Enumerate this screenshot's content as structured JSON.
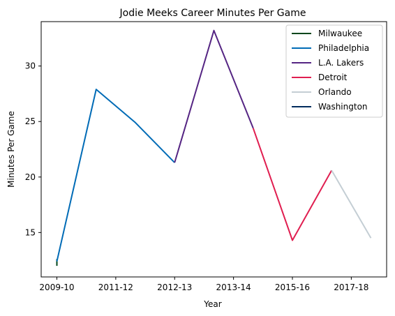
{
  "chart_data": {
    "type": "line",
    "title": "Jodie Meeks Career Minutes Per Game",
    "xlabel": "Year",
    "ylabel": "Minutes Per Game",
    "x_ticks": [
      "2009-10",
      "2011-12",
      "2012-13",
      "2013-14",
      "2015-16",
      "2017-18"
    ],
    "y_ticks": [
      15,
      20,
      25,
      30
    ],
    "ylim": [
      11,
      34
    ],
    "grid": false,
    "legend_position": "top-right",
    "series": [
      {
        "name": "Milwaukee",
        "color": "#00471b",
        "points": [
          [
            0,
            12.0
          ],
          [
            0,
            12.6
          ]
        ]
      },
      {
        "name": "Philadelphia",
        "color": "#006bb6",
        "points": [
          [
            0,
            12.4
          ],
          [
            1,
            27.9
          ],
          [
            2,
            24.9
          ],
          [
            3,
            21.3
          ]
        ]
      },
      {
        "name": "L.A. Lakers",
        "color": "#552583",
        "points": [
          [
            3,
            21.3
          ],
          [
            4,
            33.2
          ],
          [
            5,
            24.4
          ]
        ]
      },
      {
        "name": "Detroit",
        "color": "#e01e50",
        "points": [
          [
            5,
            24.4
          ],
          [
            6,
            14.3
          ],
          [
            7,
            20.6
          ]
        ]
      },
      {
        "name": "Orlando",
        "color": "#c4ced4",
        "points": [
          [
            7,
            20.6
          ],
          [
            8,
            14.5
          ]
        ]
      },
      {
        "name": "Washington",
        "color": "#002b5c",
        "points": []
      }
    ],
    "x_positions_of_ticks": [
      0,
      1.5,
      3,
      4.5,
      6,
      7.5
    ],
    "xlim": [
      -0.4,
      8.4
    ]
  }
}
